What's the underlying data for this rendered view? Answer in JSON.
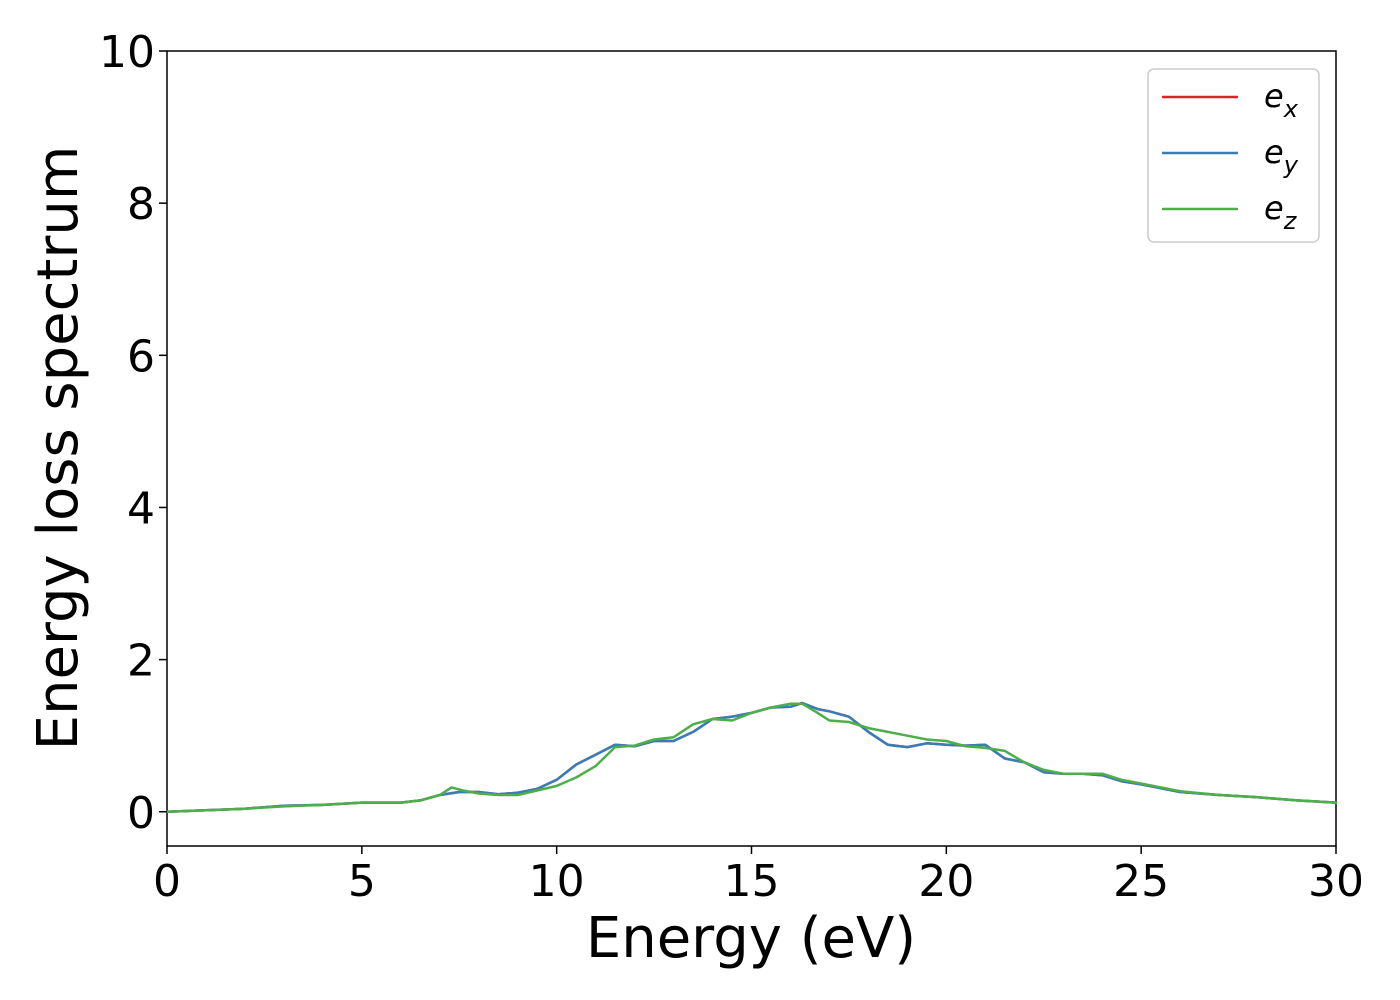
{
  "chart_data": {
    "type": "line",
    "title": "",
    "xlabel": "Energy (eV)",
    "ylabel": "Energy loss spectrum",
    "xlim": [
      0,
      30
    ],
    "ylim": [
      -0.45,
      10
    ],
    "xticks": [
      0,
      5,
      10,
      15,
      20,
      25,
      30
    ],
    "yticks": [
      0,
      2,
      4,
      6,
      8,
      10
    ],
    "grid": false,
    "legend_position": "top-right",
    "series": [
      {
        "name": "e_x",
        "label_base": "e",
        "label_sub": "x",
        "color": "#d62728",
        "x": [
          0,
          1,
          2,
          3,
          4,
          5,
          6,
          6.5,
          7,
          7.5,
          8,
          8.5,
          9,
          9.5,
          10,
          10.5,
          11,
          11.5,
          12,
          12.5,
          13,
          13.5,
          14,
          14.5,
          15,
          15.5,
          16,
          16.3,
          16.7,
          17,
          17.5,
          18,
          18.5,
          19,
          19.5,
          20,
          20.5,
          21,
          21.5,
          22,
          22.5,
          23,
          23.5,
          24,
          24.5,
          25,
          26,
          27,
          28,
          29,
          30
        ],
        "y": [
          0.0,
          0.02,
          0.04,
          0.08,
          0.09,
          0.12,
          0.12,
          0.15,
          0.22,
          0.26,
          0.26,
          0.23,
          0.25,
          0.3,
          0.42,
          0.62,
          0.75,
          0.88,
          0.86,
          0.93,
          0.93,
          1.05,
          1.22,
          1.25,
          1.3,
          1.37,
          1.38,
          1.43,
          1.35,
          1.32,
          1.25,
          1.05,
          0.88,
          0.85,
          0.9,
          0.88,
          0.87,
          0.88,
          0.7,
          0.65,
          0.52,
          0.5,
          0.5,
          0.48,
          0.4,
          0.36,
          0.26,
          0.22,
          0.19,
          0.15,
          0.12
        ]
      },
      {
        "name": "e_y",
        "label_base": "e",
        "label_sub": "y",
        "color": "#377eb8",
        "x": [
          0,
          1,
          2,
          3,
          4,
          5,
          6,
          6.5,
          7,
          7.5,
          8,
          8.5,
          9,
          9.5,
          10,
          10.5,
          11,
          11.5,
          12,
          12.5,
          13,
          13.5,
          14,
          14.5,
          15,
          15.5,
          16,
          16.3,
          16.7,
          17,
          17.5,
          18,
          18.5,
          19,
          19.5,
          20,
          20.5,
          21,
          21.5,
          22,
          22.5,
          23,
          23.5,
          24,
          24.5,
          25,
          26,
          27,
          28,
          29,
          30
        ],
        "y": [
          0.0,
          0.02,
          0.04,
          0.08,
          0.09,
          0.12,
          0.12,
          0.15,
          0.22,
          0.26,
          0.26,
          0.23,
          0.25,
          0.3,
          0.42,
          0.62,
          0.75,
          0.88,
          0.86,
          0.93,
          0.93,
          1.05,
          1.22,
          1.25,
          1.3,
          1.37,
          1.38,
          1.43,
          1.35,
          1.32,
          1.25,
          1.05,
          0.88,
          0.85,
          0.9,
          0.88,
          0.87,
          0.88,
          0.7,
          0.65,
          0.52,
          0.5,
          0.5,
          0.48,
          0.4,
          0.36,
          0.26,
          0.22,
          0.19,
          0.15,
          0.12
        ]
      },
      {
        "name": "e_z",
        "label_base": "e",
        "label_sub": "z",
        "color": "#4daf4a",
        "x": [
          0,
          1,
          2,
          3,
          4,
          5,
          6,
          6.5,
          7,
          7.3,
          7.6,
          8,
          8.5,
          9,
          9.5,
          10,
          10.5,
          11,
          11.5,
          12,
          12.5,
          13,
          13.5,
          14,
          14.5,
          15,
          15.5,
          16,
          16.3,
          16.7,
          17,
          17.5,
          18,
          18.5,
          19,
          19.5,
          20,
          20.5,
          21,
          21.5,
          22,
          22.5,
          23,
          23.5,
          24,
          24.5,
          25,
          26,
          27,
          28,
          29,
          30
        ],
        "y": [
          0.0,
          0.02,
          0.04,
          0.07,
          0.09,
          0.12,
          0.12,
          0.15,
          0.22,
          0.32,
          0.28,
          0.24,
          0.22,
          0.22,
          0.28,
          0.34,
          0.45,
          0.6,
          0.85,
          0.87,
          0.95,
          0.98,
          1.15,
          1.22,
          1.2,
          1.3,
          1.37,
          1.42,
          1.42,
          1.3,
          1.2,
          1.18,
          1.1,
          1.05,
          1.0,
          0.95,
          0.93,
          0.86,
          0.84,
          0.8,
          0.65,
          0.55,
          0.5,
          0.5,
          0.5,
          0.42,
          0.37,
          0.27,
          0.22,
          0.19,
          0.15,
          0.12
        ]
      }
    ]
  }
}
